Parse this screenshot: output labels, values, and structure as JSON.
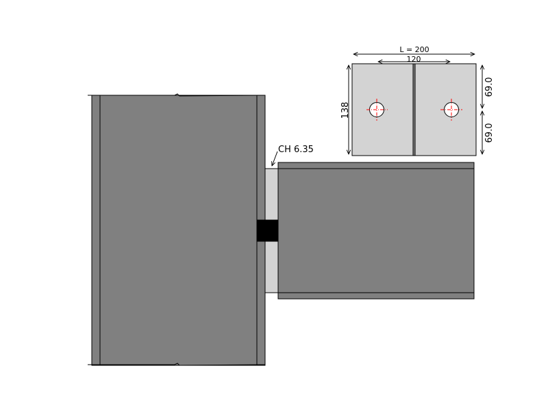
{
  "diagram": {
    "type": "steel-beam-column-connection",
    "colors": {
      "steel_section": "#808080",
      "plate_fill": "#d3d3d3",
      "weld": "#000000",
      "outline": "#000000",
      "bolt_centerline": "#ff0000",
      "background": "#ffffff"
    },
    "column": {
      "name": "column-elevation"
    },
    "beam": {
      "name": "beam-elevation"
    },
    "connection_plate": {
      "callout_label": "CH 6.35"
    },
    "plate_detail": {
      "length_label": "L = 200",
      "bolt_spacing_label": "120",
      "height_label": "138",
      "upper_edge_label": "69.0",
      "lower_edge_label": "69.0",
      "bolt_count": 2
    }
  }
}
